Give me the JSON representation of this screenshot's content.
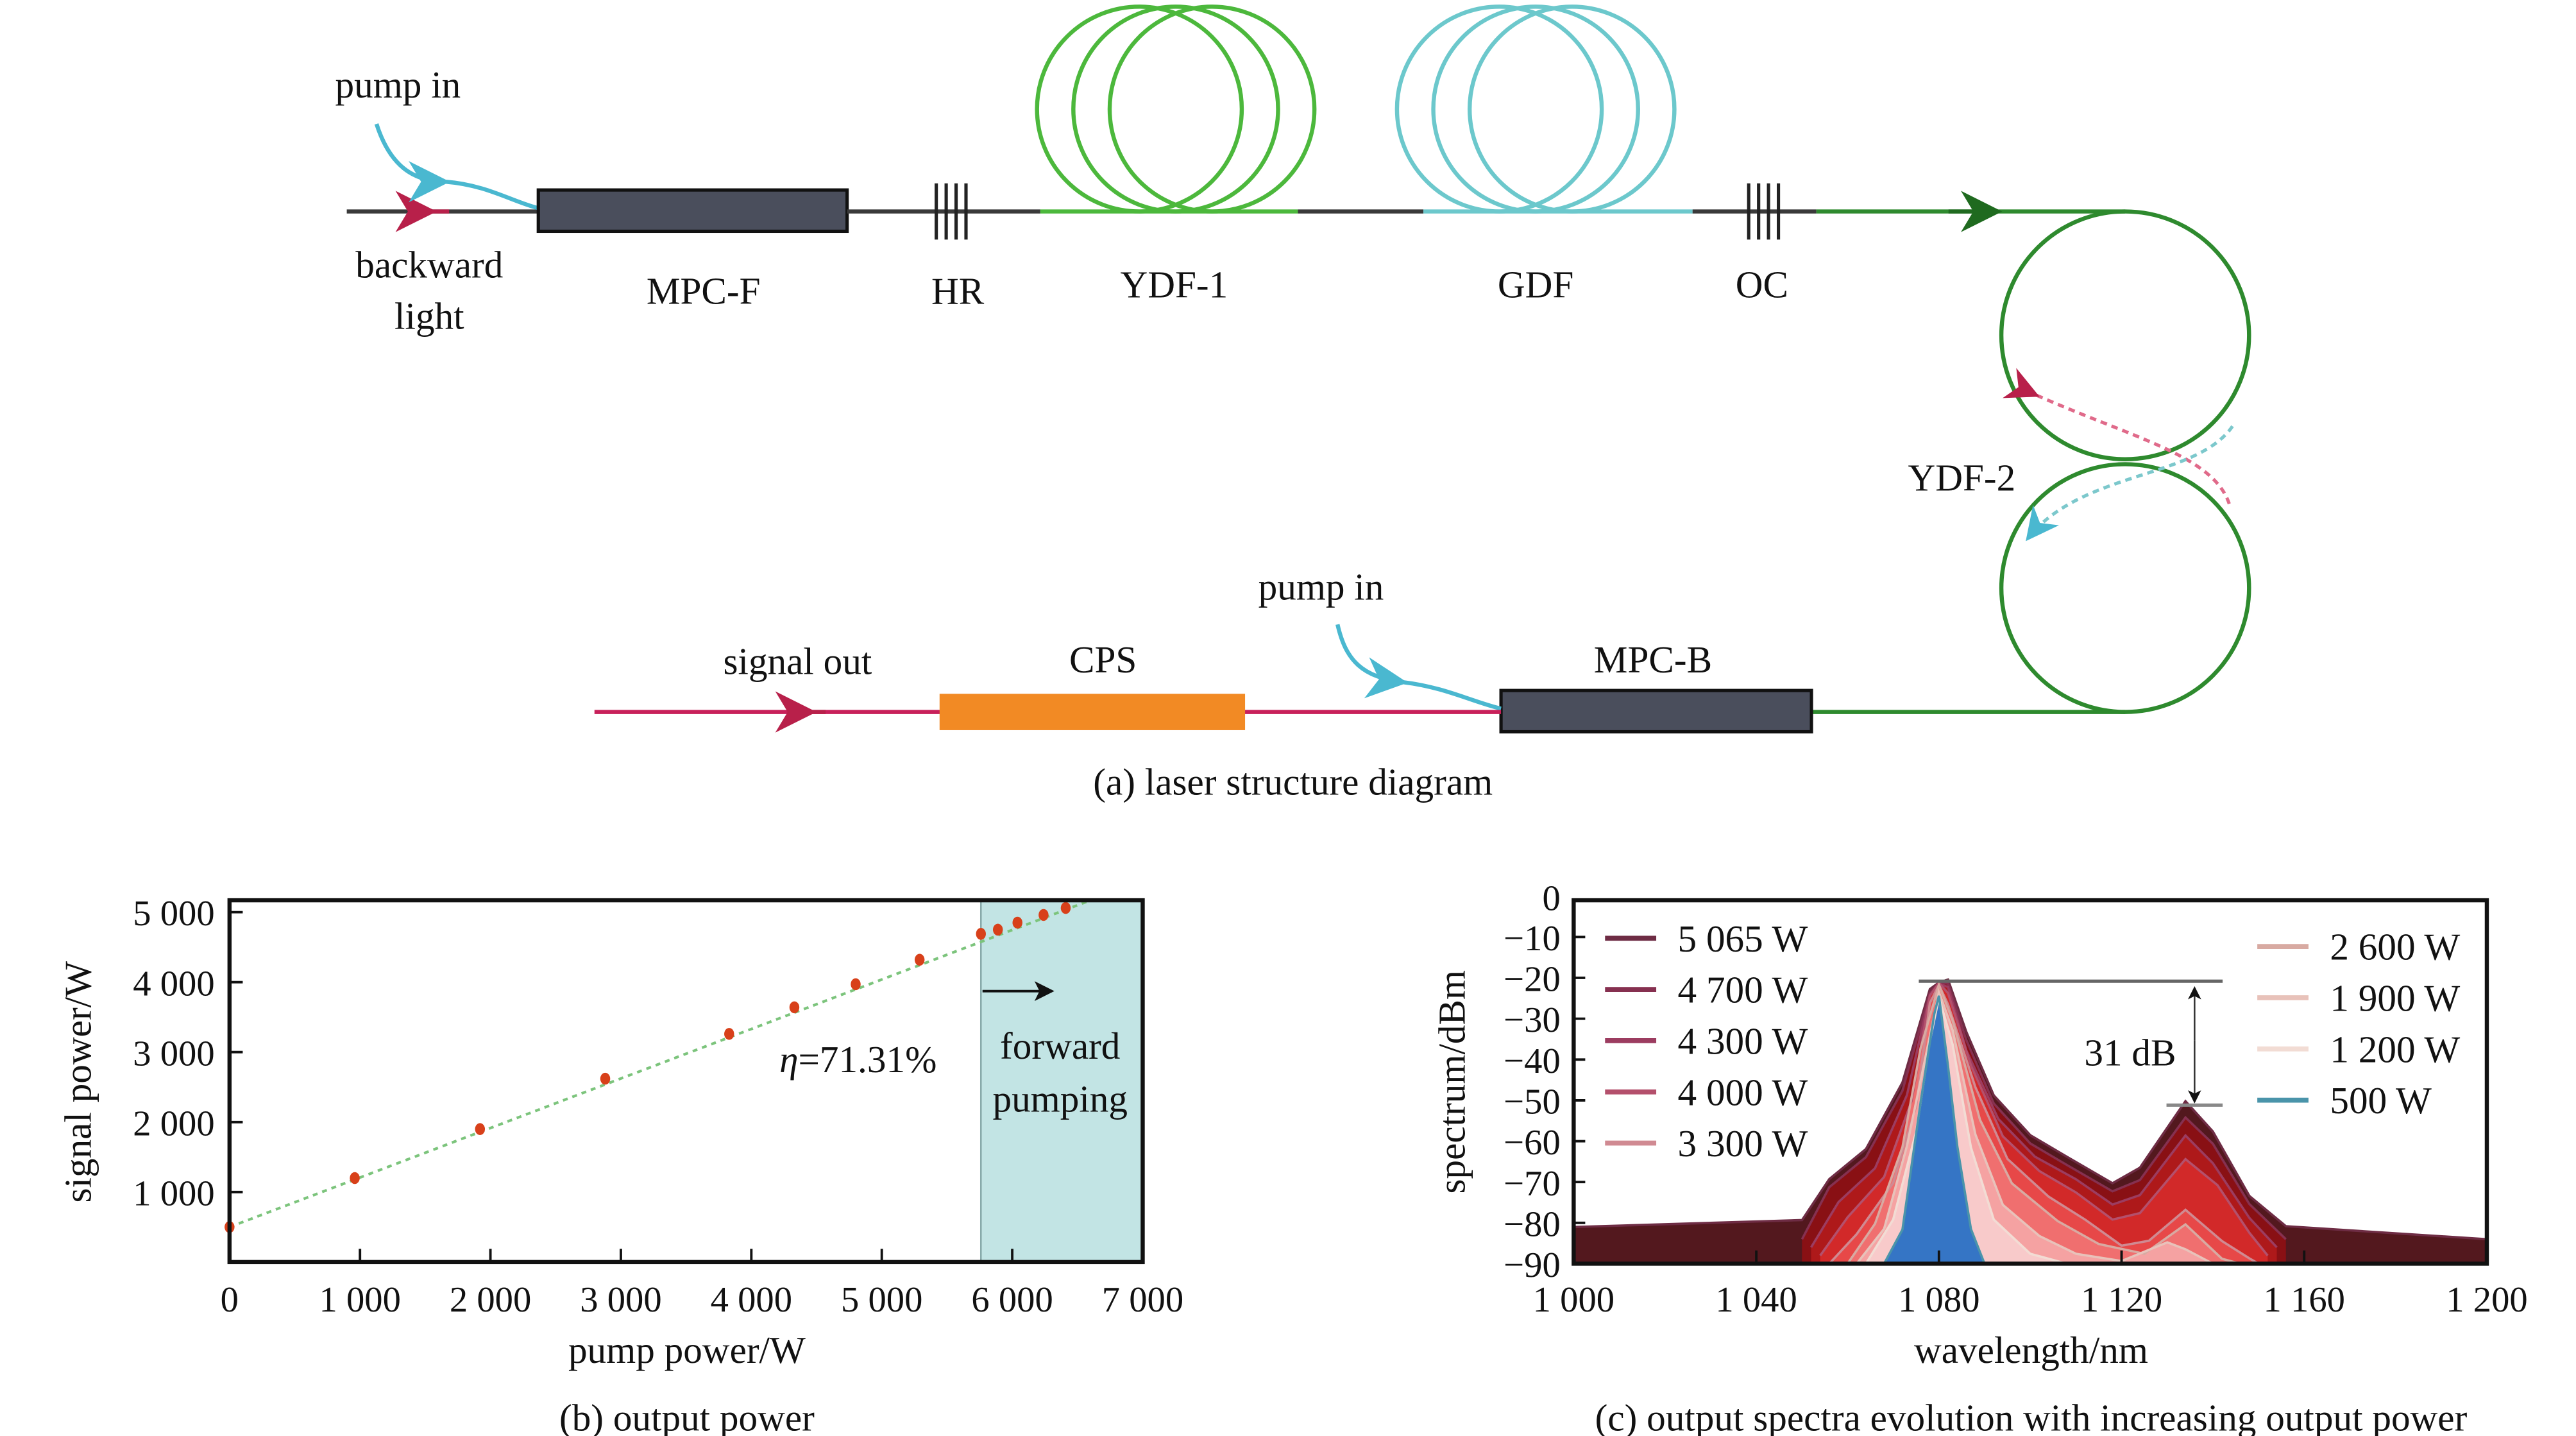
{
  "diagram": {
    "caption": "(a) laser structure diagram",
    "pump_in_1": "pump in",
    "backward_1": "backward",
    "backward_2": "light",
    "mpc_f": "MPC-F",
    "hr": "HR",
    "ydf1": "YDF-1",
    "gdf": "GDF",
    "oc": "OC",
    "ydf2": "YDF-2",
    "pump_in_2": "pump in",
    "signal_out": "signal out",
    "cps": "CPS",
    "mpc_b": "MPC-B",
    "colors": {
      "fiber": "#3a3a3a",
      "ydf": "#4cb83c",
      "gdf": "#6cc8cc",
      "signal": "#c8205a",
      "mpc": "#4a4e5c",
      "cps": "#f28a24",
      "pump": "#4ab8d0",
      "ring": "#2e8a2e"
    }
  },
  "chart_data": [
    {
      "type": "scatter",
      "caption": "(b) output power",
      "xlabel": "pump power/W",
      "ylabel": "signal power/W",
      "xlim": [
        0,
        7000
      ],
      "ylim": [
        0,
        5170
      ],
      "xticks": [
        0,
        1000,
        2000,
        3000,
        4000,
        5000,
        6000,
        7000
      ],
      "xtick_labels": [
        "0",
        "1 000",
        "2 000",
        "3 000",
        "4 000",
        "5 000",
        "6 000",
        "7 000"
      ],
      "yticks": [
        1000,
        2000,
        3000,
        4000,
        5000
      ],
      "ytick_labels": [
        "1 000",
        "2 000",
        "3 000",
        "4 000",
        "5 000"
      ],
      "x": [
        0,
        960,
        1920,
        2880,
        3830,
        4330,
        4800,
        5290,
        5760,
        5890,
        6040,
        6240,
        6410
      ],
      "y": [
        500,
        1200,
        1900,
        2620,
        3260,
        3640,
        3970,
        4320,
        4690,
        4750,
        4850,
        4960,
        5060
      ],
      "fit": {
        "x": [
          0,
          6600
        ],
        "y": [
          500,
          5170
        ]
      },
      "shaded_region": {
        "x": [
          5760,
          7000
        ],
        "color": "#c2e4e4"
      },
      "annotation_eta_symbol": "η",
      "annotation_eta_value": "=71.31%",
      "region_label_1": "forward",
      "region_label_2": "pumping",
      "point_color": "#d8401a",
      "fit_color": "#7cc47c"
    },
    {
      "type": "line",
      "caption": "(c) output spectra evolution with increasing output power",
      "xlabel": "wavelength/nm",
      "ylabel": "spectrum/dBm",
      "xlim": [
        1000,
        1200
      ],
      "ylim": [
        -90,
        -1
      ],
      "xticks": [
        1000,
        1040,
        1080,
        1120,
        1160,
        1200
      ],
      "xtick_labels": [
        "1 000",
        "1 040",
        "1 080",
        "1 120",
        "1 160",
        "1 200"
      ],
      "yticks": [
        0,
        -10,
        -20,
        -30,
        -40,
        -50,
        -60,
        -70,
        -80,
        -90
      ],
      "ytick_labels": [
        "0",
        "−10",
        "−20",
        "−30",
        "−40",
        "−50",
        "−60",
        "−70",
        "−80",
        "−90"
      ],
      "annotation": "31 dB",
      "annotation_levels": [
        -20.5,
        -51
      ],
      "series": [
        {
          "name": "5 065 W",
          "color": "#6e2c44",
          "fill": "#4a0c12",
          "x": [
            1000,
            1050,
            1056,
            1064,
            1072,
            1078,
            1080,
            1082,
            1086,
            1092,
            1100,
            1108,
            1118,
            1124,
            1134,
            1140,
            1148,
            1156,
            1200
          ],
          "y": [
            -81,
            -80,
            -70,
            -62,
            -45,
            -22,
            -21,
            -21,
            -34,
            -49,
            -58,
            -63,
            -70,
            -67,
            -51,
            -58,
            -73,
            -80,
            -84
          ]
        },
        {
          "name": "4 700 W",
          "color": "#863050",
          "fill": "#8c1014",
          "x": [
            1050,
            1056,
            1064,
            1072,
            1078,
            1080,
            1082,
            1086,
            1092,
            1100,
            1108,
            1118,
            1124,
            1134,
            1140,
            1148,
            1156
          ],
          "y": [
            -84,
            -72,
            -64,
            -47,
            -23,
            -21,
            -22,
            -36,
            -51,
            -60,
            -65,
            -72,
            -70,
            -55,
            -61,
            -75,
            -84
          ]
        },
        {
          "name": "4 300 W",
          "color": "#9c3c60",
          "fill": "#b01a1a",
          "x": [
            1052,
            1058,
            1066,
            1073,
            1078,
            1080,
            1082,
            1086,
            1093,
            1101,
            1110,
            1118,
            1124,
            1134,
            1140,
            1148,
            1154
          ],
          "y": [
            -86,
            -75,
            -66,
            -48,
            -24,
            -22,
            -23,
            -38,
            -54,
            -63,
            -69,
            -76,
            -74,
            -59,
            -65,
            -78,
            -86
          ]
        },
        {
          "name": "4 000 W",
          "color": "#b4506c",
          "fill": "#d42a2a",
          "x": [
            1054,
            1060,
            1068,
            1074,
            1078,
            1080,
            1082,
            1087,
            1094,
            1102,
            1110,
            1118,
            1124,
            1134,
            1141,
            1148,
            1152
          ],
          "y": [
            -88,
            -78,
            -68,
            -50,
            -25,
            -22,
            -24,
            -41,
            -58,
            -67,
            -73,
            -80,
            -78,
            -64,
            -70,
            -82,
            -88
          ]
        },
        {
          "name": "3 300 W",
          "color": "#d08a92",
          "fill": "#e84a4a",
          "x": [
            1056,
            1062,
            1070,
            1075,
            1078,
            1080,
            1082,
            1088,
            1095,
            1104,
            1112,
            1120,
            1126,
            1134,
            1142,
            1148,
            1150
          ],
          "y": [
            -90,
            -82,
            -70,
            -52,
            -27,
            -22,
            -26,
            -46,
            -64,
            -74,
            -80,
            -86,
            -84,
            -76,
            -84,
            -89,
            -90
          ]
        },
        {
          "name": "2 600 W",
          "color": "#d8aaa2",
          "fill": "#f07272",
          "x": [
            1060,
            1066,
            1072,
            1076,
            1080,
            1083,
            1089,
            1096,
            1106,
            1115,
            1125,
            1134,
            1142,
            1146
          ],
          "y": [
            -90,
            -80,
            -62,
            -38,
            -22,
            -30,
            -54,
            -70,
            -80,
            -86,
            -88,
            -80,
            -88,
            -90
          ]
        },
        {
          "name": "1 900 W",
          "color": "#e8c2ba",
          "fill": "#f4a4a4",
          "x": [
            1062,
            1068,
            1073,
            1077,
            1080,
            1083,
            1088,
            1094,
            1102,
            1110,
            1120,
            1130,
            1134,
            1140
          ],
          "y": [
            -90,
            -82,
            -62,
            -40,
            -23,
            -32,
            -58,
            -76,
            -84,
            -88,
            -89,
            -84,
            -86,
            -90
          ]
        },
        {
          "name": "1 200 W",
          "color": "#f2dcd4",
          "fill": "#f8cccc",
          "x": [
            1064,
            1070,
            1075,
            1078,
            1080,
            1083,
            1087,
            1092,
            1100,
            1108
          ],
          "y": [
            -90,
            -80,
            -58,
            -35,
            -24,
            -36,
            -62,
            -80,
            -88,
            -90
          ]
        },
        {
          "name": "500 W",
          "color": "#4a94aa",
          "fill": "#2a70c4",
          "x": [
            1068,
            1072,
            1076,
            1079,
            1080,
            1082,
            1084,
            1087,
            1090
          ],
          "y": [
            -90,
            -82,
            -50,
            -28,
            -24,
            -42,
            -62,
            -82,
            -90
          ]
        }
      ]
    }
  ]
}
